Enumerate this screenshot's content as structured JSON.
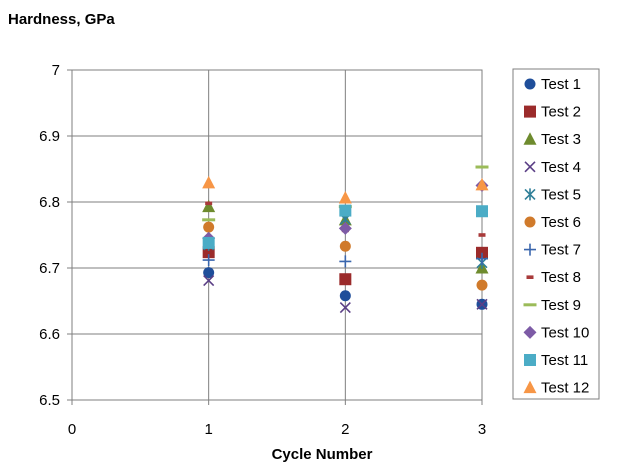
{
  "chart_data": {
    "type": "scatter",
    "ylabel": "Hardness, GPa",
    "xlabel": "Cycle Number",
    "xlim": [
      0,
      3
    ],
    "ylim": [
      6.5,
      7
    ],
    "xticks": [
      "0",
      "1",
      "2",
      "3"
    ],
    "yticks": [
      "6.5",
      "6.6",
      "6.7",
      "6.8",
      "6.9",
      "7"
    ],
    "grid": "major lines on both axes",
    "legend_position": "right",
    "series": [
      {
        "name": "Test 1",
        "marker": "circle",
        "color": "#1F4E9A",
        "x": [
          1,
          2,
          3
        ],
        "y": [
          6.693,
          6.658,
          6.645
        ]
      },
      {
        "name": "Test 2",
        "marker": "square",
        "color": "#9B2B2B",
        "x": [
          1,
          2,
          3
        ],
        "y": [
          6.724,
          6.683,
          6.723
        ]
      },
      {
        "name": "Test 3",
        "marker": "triangle",
        "color": "#6E8B2E",
        "x": [
          1,
          2,
          3
        ],
        "y": [
          6.793,
          6.773,
          6.7
        ]
      },
      {
        "name": "Test 4",
        "marker": "x",
        "color": "#5B3F86",
        "x": [
          1,
          2,
          3
        ],
        "y": [
          6.681,
          6.64,
          6.645
        ]
      },
      {
        "name": "Test 5",
        "marker": "asterisk",
        "color": "#2F7F98",
        "x": [
          1,
          2,
          3
        ],
        "y": [
          6.735,
          6.774,
          6.708
        ]
      },
      {
        "name": "Test 6",
        "marker": "circle",
        "color": "#D07A2B",
        "x": [
          1,
          2,
          3
        ],
        "y": [
          6.762,
          6.733,
          6.674
        ]
      },
      {
        "name": "Test 7",
        "marker": "plus",
        "color": "#3A66AD",
        "x": [
          1,
          2,
          3
        ],
        "y": [
          6.712,
          6.71,
          6.714
        ]
      },
      {
        "name": "Test 8",
        "marker": "dash",
        "color": "#A83A3A",
        "x": [
          1,
          2,
          3
        ],
        "y": [
          6.798,
          6.757,
          6.75
        ]
      },
      {
        "name": "Test 9",
        "marker": "hline",
        "color": "#9BBB59",
        "x": [
          1,
          2,
          3
        ],
        "y": [
          6.773,
          6.793,
          6.853
        ]
      },
      {
        "name": "Test 10",
        "marker": "diamond",
        "color": "#7D5BA6",
        "x": [
          1,
          2,
          3
        ],
        "y": [
          6.745,
          6.76,
          6.825
        ]
      },
      {
        "name": "Test 11",
        "marker": "square",
        "color": "#4BACC6",
        "x": [
          1,
          2,
          3
        ],
        "y": [
          6.738,
          6.787,
          6.786
        ]
      },
      {
        "name": "Test 12",
        "marker": "triangle",
        "color": "#F79646",
        "x": [
          1,
          2,
          3
        ],
        "y": [
          6.829,
          6.806,
          6.826
        ]
      }
    ]
  }
}
